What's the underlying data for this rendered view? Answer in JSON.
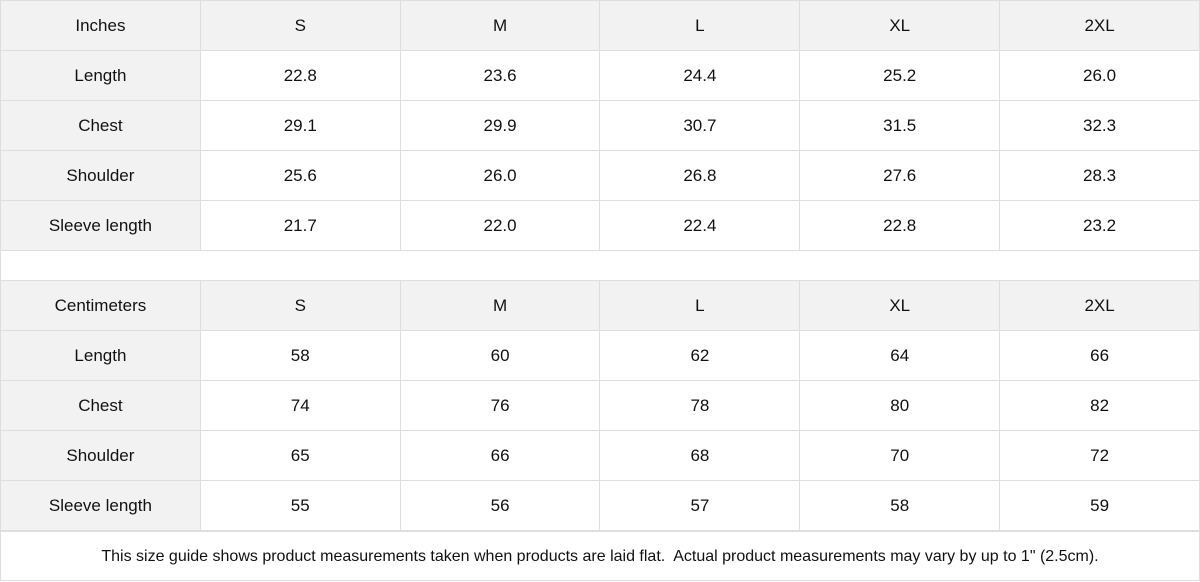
{
  "tables": [
    {
      "unit": "Inches",
      "sizes": [
        "S",
        "M",
        "L",
        "XL",
        "2XL"
      ],
      "rows": [
        {
          "label": "Length",
          "values": [
            "22.8",
            "23.6",
            "24.4",
            "25.2",
            "26.0"
          ]
        },
        {
          "label": "Chest",
          "values": [
            "29.1",
            "29.9",
            "30.7",
            "31.5",
            "32.3"
          ]
        },
        {
          "label": "Shoulder",
          "values": [
            "25.6",
            "26.0",
            "26.8",
            "27.6",
            "28.3"
          ]
        },
        {
          "label": "Sleeve length",
          "values": [
            "21.7",
            "22.0",
            "22.4",
            "22.8",
            "23.2"
          ]
        }
      ]
    },
    {
      "unit": "Centimeters",
      "sizes": [
        "S",
        "M",
        "L",
        "XL",
        "2XL"
      ],
      "rows": [
        {
          "label": "Length",
          "values": [
            "58",
            "60",
            "62",
            "64",
            "66"
          ]
        },
        {
          "label": "Chest",
          "values": [
            "74",
            "76",
            "78",
            "80",
            "82"
          ]
        },
        {
          "label": "Shoulder",
          "values": [
            "65",
            "66",
            "68",
            "70",
            "72"
          ]
        },
        {
          "label": "Sleeve length",
          "values": [
            "55",
            "56",
            "57",
            "58",
            "59"
          ]
        }
      ]
    }
  ],
  "footer": "This size guide shows product measurements taken when products are laid flat.  Actual product measurements may vary by up to 1\" (2.5cm)."
}
